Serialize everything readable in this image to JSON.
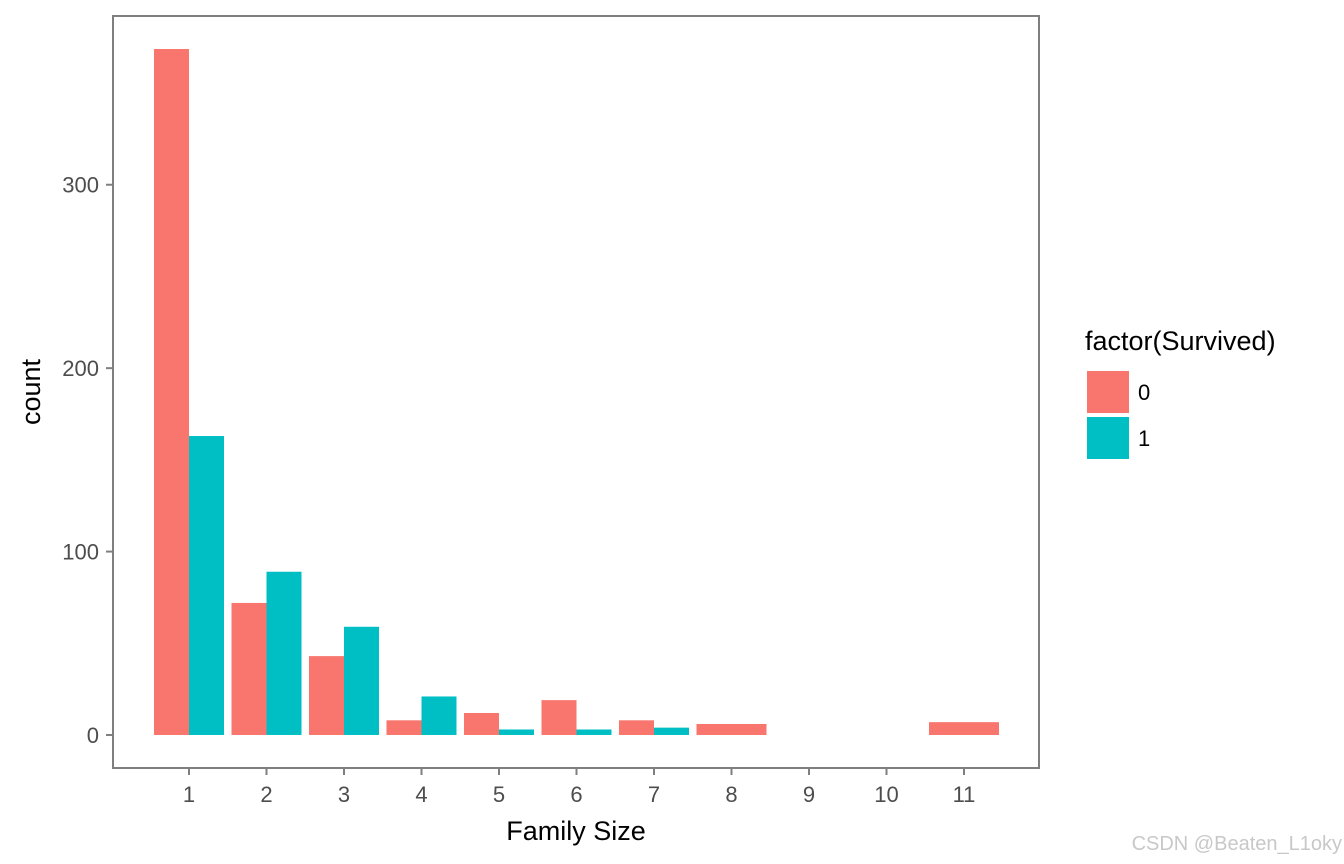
{
  "chart_data": {
    "type": "bar",
    "xlabel": "Family Size",
    "ylabel": "count",
    "categories": [
      "1",
      "2",
      "3",
      "4",
      "5",
      "6",
      "7",
      "8",
      "9",
      "10",
      "11"
    ],
    "ylim": [
      -18,
      392
    ],
    "yticks": [
      0,
      100,
      200,
      300
    ],
    "grid": false,
    "legend": {
      "title": "factor(Survived)",
      "placement": "right"
    },
    "series": [
      {
        "name": "0",
        "color": "#F8766D",
        "values": [
          374,
          72,
          43,
          8,
          12,
          19,
          8,
          null,
          null,
          null,
          null
        ]
      },
      {
        "name": "1",
        "color": "#00BFC4",
        "values": [
          163,
          89,
          59,
          21,
          3,
          3,
          4,
          null,
          null,
          null,
          null
        ]
      }
    ],
    "single_bars": [
      {
        "category": "8",
        "series": "0",
        "value": 6
      },
      {
        "category": "11",
        "series": "0",
        "value": 7
      }
    ]
  },
  "watermark": "CSDN @Beaten_L1oky"
}
